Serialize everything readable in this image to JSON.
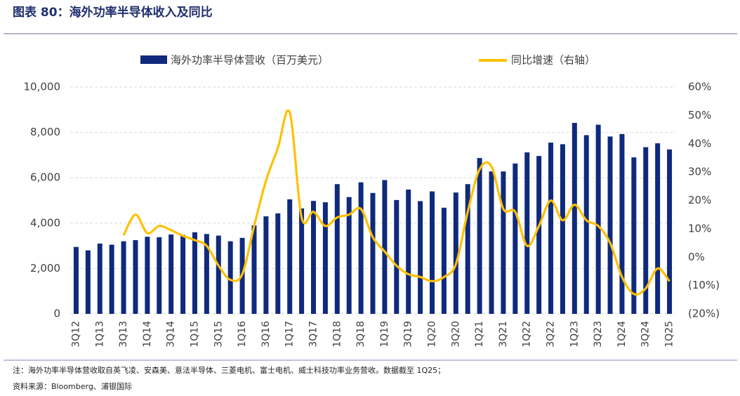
{
  "chart_data": {
    "type": "bar",
    "title": "图表 80：海外功率半导体收入及同比",
    "categories": [
      "3Q12",
      null,
      "1Q13",
      null,
      "3Q13",
      null,
      "1Q14",
      null,
      "3Q14",
      null,
      "1Q15",
      null,
      "3Q15",
      null,
      "1Q16",
      null,
      "3Q16",
      null,
      "1Q17",
      null,
      "3Q17",
      null,
      "1Q18",
      null,
      "3Q18",
      null,
      "1Q19",
      null,
      "3Q19",
      null,
      "1Q20",
      null,
      "3Q20",
      null,
      "1Q21",
      null,
      "3Q21",
      null,
      "1Q22",
      null,
      "3Q22",
      null,
      "1Q23",
      null,
      "3Q23",
      null,
      "1Q24",
      null,
      "3Q24",
      null,
      "1Q25"
    ],
    "series": [
      {
        "name": "海外功率半导体营收（百万美元）",
        "color": "#0f2a7c",
        "type": "bar",
        "values": [
          2950,
          2800,
          3100,
          3050,
          3200,
          3250,
          3400,
          3380,
          3500,
          3480,
          3600,
          3520,
          3450,
          3200,
          3350,
          3900,
          4300,
          4430,
          5050,
          4650,
          4980,
          4920,
          5720,
          5150,
          5800,
          5330,
          5900,
          5020,
          5480,
          4970,
          5400,
          4680,
          5350,
          5720,
          6870,
          6280,
          6280,
          6630,
          7120,
          6960,
          7550,
          7480,
          8420,
          7880,
          8340,
          7820,
          7930,
          6900,
          7350,
          7520,
          7250
        ]
      },
      {
        "name": "同比增速（右轴）",
        "color": "#ffc000",
        "type": "line",
        "axis": "y2",
        "values": [
          null,
          null,
          null,
          null,
          7.7,
          15,
          8.5,
          11,
          9.5,
          7.5,
          6,
          4,
          -3,
          -8,
          -6,
          11,
          27,
          38.5,
          51,
          14,
          16,
          11,
          14,
          15,
          17,
          7,
          2,
          -3,
          -6,
          -7,
          -8.5,
          -7,
          -2.5,
          16,
          31,
          32,
          17,
          16,
          4,
          11,
          20,
          13,
          18.5,
          13,
          11,
          5,
          -7,
          -13,
          -11,
          -4,
          -8.5
        ]
      }
    ],
    "ylim": [
      0,
      10000
    ],
    "yticks": [
      0,
      {
        "value": 2000,
        "label": "2,000"
      },
      {
        "value": 4000,
        "label": "4,000"
      },
      {
        "value": 6000,
        "label": "6,000"
      },
      {
        "value": 8000,
        "label": "8,000"
      },
      {
        "value": 10000,
        "label": "10,000"
      }
    ],
    "y2lim": [
      -20,
      60
    ],
    "y2ticks": [
      {
        "value": -20,
        "label": "(20%)"
      },
      {
        "value": -10,
        "label": "(10%)"
      },
      {
        "value": 0,
        "label": "0%"
      },
      {
        "value": 10,
        "label": "10%"
      },
      {
        "value": 20,
        "label": "20%"
      },
      {
        "value": 30,
        "label": "30%"
      },
      {
        "value": 40,
        "label": "40%"
      },
      {
        "value": 50,
        "label": "50%"
      },
      {
        "value": 60,
        "label": "60%"
      }
    ],
    "grid": true,
    "legend": "top",
    "note": "注：海外功率半导体营收取自英飞凌、安森美、意法半导体、三菱电机、富士电机、威士科技功率业务营收。数据截至 1Q25；",
    "source": "资料来源：Bloomberg、浦银国际"
  }
}
